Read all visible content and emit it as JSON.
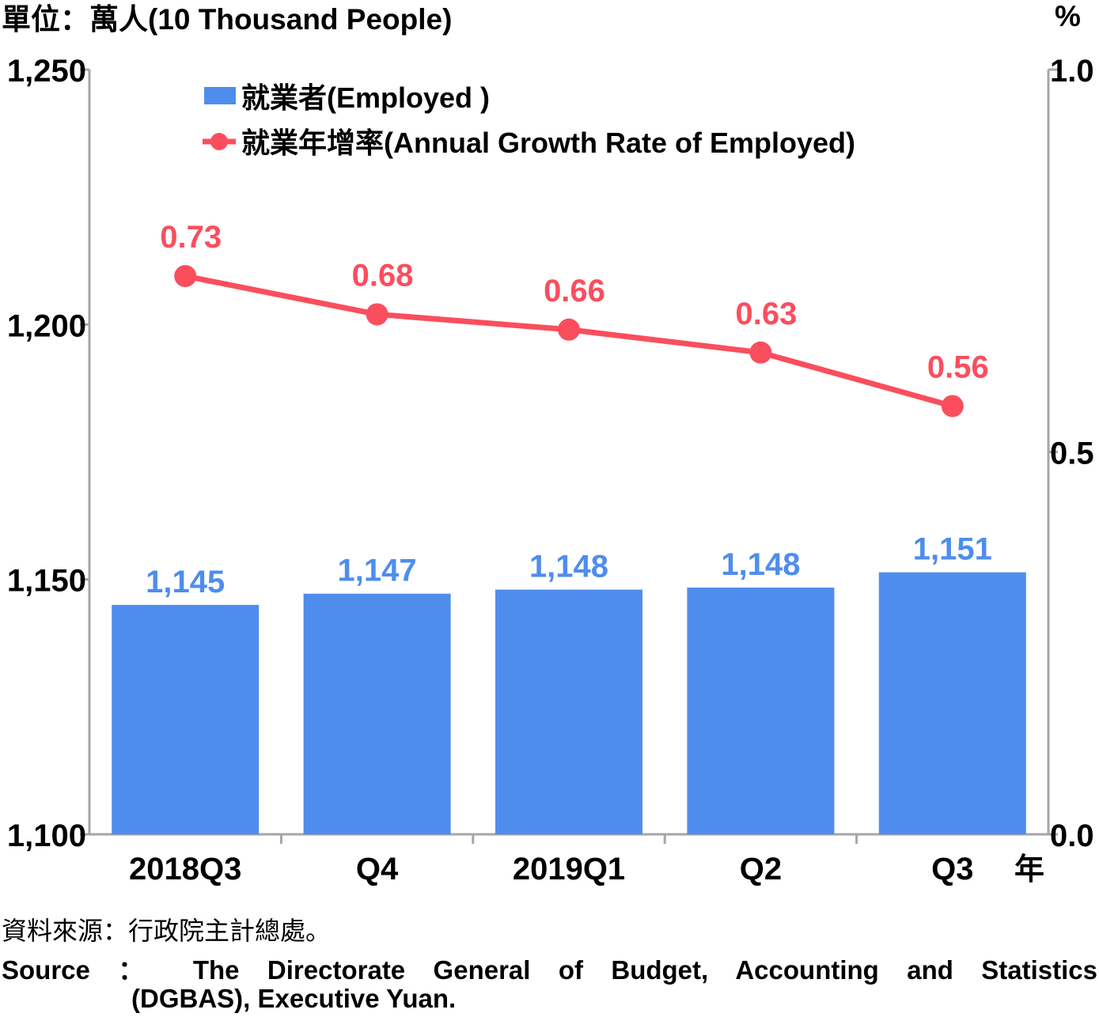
{
  "chart_data": {
    "type": "bar+line",
    "unit_left": "單位：萬人(10 Thousand People)",
    "unit_right": "%",
    "categories": [
      "2018Q3",
      "Q4",
      "2019Q1",
      "Q2",
      "Q3"
    ],
    "x_suffix": "年",
    "left_axis": {
      "min": 1100,
      "max": 1250,
      "ticks": [
        1100,
        1150,
        1200,
        1250
      ],
      "tick_labels": [
        "1,100",
        "1,150",
        "1,200",
        "1,250"
      ]
    },
    "right_axis": {
      "min": 0.0,
      "max": 1.0,
      "ticks": [
        0.0,
        0.5,
        1.0
      ],
      "tick_labels": [
        "0.0",
        "0.5",
        "1.0"
      ]
    },
    "series": [
      {
        "name": "就業者(Employed )",
        "type": "bar",
        "axis": "left",
        "color": "#4f8ded",
        "values": [
          1145,
          1147,
          1148,
          1148,
          1151
        ],
        "labels": [
          "1,145",
          "1,147",
          "1,148",
          "1,148",
          "1,151"
        ],
        "raw": [
          1145.0,
          1147.2,
          1148.0,
          1148.4,
          1151.4
        ]
      },
      {
        "name": "就業年增率(Annual Growth Rate of Employed)",
        "type": "line",
        "axis": "right",
        "color": "#fa4e5e",
        "values": [
          0.73,
          0.68,
          0.66,
          0.63,
          0.56
        ],
        "labels": [
          "0.73",
          "0.68",
          "0.66",
          "0.63",
          "0.56"
        ]
      }
    ],
    "legend": "top-left"
  },
  "source": {
    "cn": "資料來源：行政院主計總處。",
    "en_line1": "Source ： The Directorate General of Budget, Accounting and Statistics",
    "en_line2": "(DGBAS), Executive Yuan."
  }
}
